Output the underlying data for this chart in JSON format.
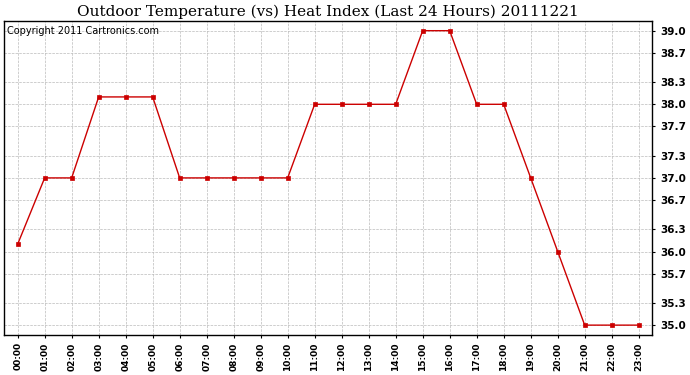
{
  "title": "Outdoor Temperature (vs) Heat Index (Last 24 Hours) 20111221",
  "copyright_text": "Copyright 2011 Cartronics.com",
  "x_labels": [
    "00:00",
    "01:00",
    "02:00",
    "03:00",
    "04:00",
    "05:00",
    "06:00",
    "07:00",
    "08:00",
    "09:00",
    "10:00",
    "11:00",
    "12:00",
    "13:00",
    "14:00",
    "15:00",
    "16:00",
    "17:00",
    "18:00",
    "19:00",
    "20:00",
    "21:00",
    "22:00",
    "23:00"
  ],
  "y_values": [
    36.1,
    37.0,
    37.0,
    38.1,
    38.1,
    38.1,
    37.0,
    37.0,
    37.0,
    37.0,
    37.0,
    38.0,
    38.0,
    38.0,
    38.0,
    39.0,
    39.0,
    38.0,
    38.0,
    37.0,
    36.0,
    35.0,
    35.0,
    35.0
  ],
  "line_color": "#cc0000",
  "marker_color": "#cc0000",
  "bg_color": "#ffffff",
  "grid_color": "#bbbbbb",
  "ylim_min": 34.87,
  "ylim_max": 39.13,
  "yticks": [
    35.0,
    35.3,
    35.7,
    36.0,
    36.3,
    36.7,
    37.0,
    37.3,
    37.7,
    38.0,
    38.3,
    38.7,
    39.0
  ],
  "title_fontsize": 11,
  "copyright_fontsize": 7,
  "tick_fontsize": 7.5,
  "xtick_fontsize": 6.5
}
